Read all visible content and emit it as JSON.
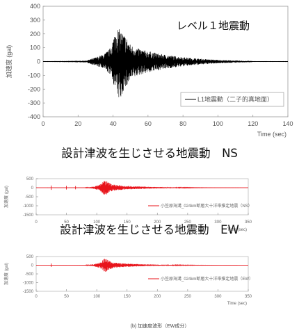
{
  "chart_data": [
    {
      "type": "line",
      "title": "レベル１地震動",
      "xlabel": "Time (sec)",
      "ylabel": "加速度 (gal)",
      "xlim": [
        0,
        140
      ],
      "ylim": [
        -400,
        400
      ],
      "x_ticks": [
        "0",
        "20",
        "40",
        "60",
        "80",
        "100",
        "120",
        "140"
      ],
      "y_ticks": [
        "400",
        "300",
        "200",
        "100",
        "0",
        "-100",
        "-200",
        "-300",
        "-400"
      ],
      "series": [
        {
          "name": "L1地震動（二子的真地面）",
          "color": "#000000"
        }
      ],
      "legend": "bottom-right",
      "envelope": {
        "x": [
          0,
          18,
          25,
          30,
          35,
          38,
          40,
          42,
          44,
          46,
          48,
          50,
          53,
          57,
          62,
          67,
          72,
          78,
          85,
          92,
          100,
          108,
          115,
          120,
          140
        ],
        "y_max": [
          1,
          2,
          8,
          30,
          55,
          90,
          160,
          250,
          230,
          200,
          170,
          120,
          100,
          85,
          70,
          55,
          45,
          35,
          25,
          18,
          12,
          8,
          5,
          1,
          1
        ],
        "y_min": [
          -1,
          -2,
          -8,
          -30,
          -55,
          -90,
          -150,
          -230,
          -290,
          -210,
          -180,
          -130,
          -110,
          -90,
          -75,
          -60,
          -50,
          -38,
          -28,
          -20,
          -13,
          -9,
          -6,
          -1,
          -1
        ]
      }
    },
    {
      "type": "line",
      "title": "設計津波を生じさせる地震動　NS",
      "xlabel": "Time (sec)",
      "ylabel": "加速度 (gal)",
      "xlim": [
        0,
        350
      ],
      "ylim": [
        -1500,
        500
      ],
      "x_ticks": [
        "0",
        "50",
        "100",
        "150",
        "200",
        "250",
        "300",
        "350"
      ],
      "y_ticks": [
        "500",
        "0",
        "-500",
        "-1000",
        "-1500"
      ],
      "series": [
        {
          "name": "小笠原海溝_024km断層大十洋帯推定地震（NS）",
          "color": "#e8141b"
        }
      ],
      "legend": "bottom-right",
      "envelope": {
        "x": [
          0,
          80,
          95,
          105,
          110,
          113,
          116,
          120,
          125,
          135,
          150,
          170,
          190,
          215,
          240,
          270,
          300,
          330,
          350
        ],
        "y_max": [
          0,
          5,
          60,
          180,
          330,
          420,
          380,
          280,
          200,
          140,
          100,
          70,
          50,
          30,
          18,
          10,
          5,
          2,
          0
        ],
        "y_min": [
          0,
          -5,
          -60,
          -180,
          -330,
          -450,
          -380,
          -280,
          -200,
          -140,
          -100,
          -70,
          -50,
          -30,
          -18,
          -10,
          -5,
          -2,
          0
        ],
        "sparks": [
          {
            "x": 25,
            "y": 120
          },
          {
            "x": 50,
            "y": 100
          },
          {
            "x": 65,
            "y": 90
          }
        ]
      }
    },
    {
      "type": "line",
      "title": "設計津波を生じさせる地震動　EW",
      "xlabel": "Time (sec)",
      "ylabel": "加速度 (gal)",
      "xlim": [
        0,
        350
      ],
      "ylim": [
        -1500,
        500
      ],
      "x_ticks": [
        "0",
        "50",
        "100",
        "150",
        "200",
        "250",
        "300",
        "350"
      ],
      "y_ticks": [
        "500",
        "0",
        "-500",
        "-1000",
        "-1500"
      ],
      "series": [
        {
          "name": "小笠原海溝_024km断層大十洋帯推定地震（EW）",
          "color": "#e8141b"
        }
      ],
      "legend": "bottom-right",
      "envelope": {
        "x": [
          0,
          80,
          95,
          105,
          110,
          113,
          116,
          120,
          125,
          135,
          150,
          170,
          190,
          215,
          240,
          270,
          300,
          330,
          350
        ],
        "y_max": [
          0,
          5,
          60,
          160,
          300,
          400,
          360,
          260,
          190,
          130,
          95,
          65,
          45,
          28,
          16,
          9,
          4,
          2,
          0
        ],
        "y_min": [
          0,
          -5,
          -60,
          -170,
          -320,
          -420,
          -360,
          -270,
          -190,
          -130,
          -95,
          -65,
          -45,
          -28,
          -16,
          -9,
          -4,
          -2,
          0
        ],
        "sparks": [
          {
            "x": 25,
            "y": 100
          }
        ]
      }
    }
  ],
  "footer_caption": "(b) 加速度波形（EW成分）"
}
